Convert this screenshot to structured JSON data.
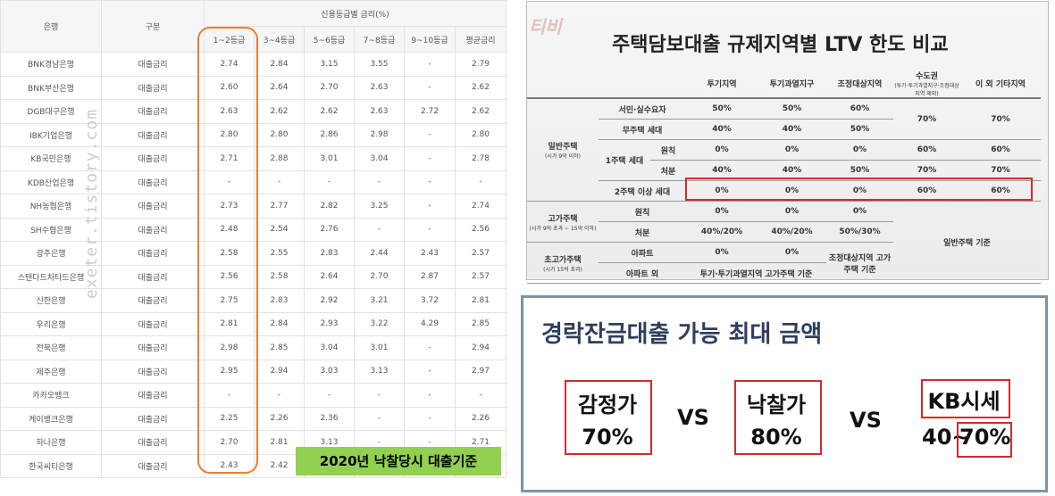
{
  "banks": {
    "header": [
      "은행",
      "구분",
      "신용등급별 금리(%)"
    ],
    "subheader": [
      "1~2등급",
      "3~4등급",
      "5~6등급",
      "7~8등급",
      "9~10등급",
      "평균금리"
    ],
    "rows": [
      [
        "BNK경남은행",
        "대출금리",
        "2.74",
        "2.84",
        "3.15",
        "3.55",
        "-",
        "2.79"
      ],
      [
        "BNK부산은행",
        "대출금리",
        "2.60",
        "2.64",
        "2.70",
        "2.63",
        "-",
        "2.62"
      ],
      [
        "DGB대구은행",
        "대출금리",
        "2.63",
        "2.62",
        "2.62",
        "2.63",
        "2.72",
        "2.62"
      ],
      [
        "IBK기업은행",
        "대출금리",
        "2.80",
        "2.80",
        "2.86",
        "2.98",
        "-",
        "2.80"
      ],
      [
        "KB국민은행",
        "대출금리",
        "2.71",
        "2.88",
        "3.01",
        "3.04",
        "-",
        "2.78"
      ],
      [
        "KDB산업은행",
        "대출금리",
        "-",
        "-",
        "-",
        "-",
        "-",
        "-"
      ],
      [
        "NH농협은행",
        "대출금리",
        "2.73",
        "2.77",
        "2.82",
        "3.25",
        "-",
        "2.74"
      ],
      [
        "SH수협은행",
        "대출금리",
        "2.48",
        "2.54",
        "2.76",
        "-",
        "-",
        "2.56"
      ],
      [
        "광주은행",
        "대출금리",
        "2.58",
        "2.55",
        "2.83",
        "2.44",
        "2.43",
        "2.57"
      ],
      [
        "스탠다드차타드은행",
        "대출금리",
        "2.56",
        "2.58",
        "2.64",
        "2.70",
        "2.87",
        "2.57"
      ],
      [
        "신한은행",
        "대출금리",
        "2.75",
        "2.83",
        "2.92",
        "3.21",
        "3.72",
        "2.81"
      ],
      [
        "우리은행",
        "대출금리",
        "2.81",
        "2.84",
        "2.93",
        "3.22",
        "4.29",
        "2.85"
      ],
      [
        "전북은행",
        "대출금리",
        "2.98",
        "2.85",
        "3.04",
        "3.01",
        "-",
        "2.94"
      ],
      [
        "제주은행",
        "대출금리",
        "2.95",
        "2.94",
        "3.03",
        "3.13",
        "-",
        "2.97"
      ],
      [
        "카카오뱅크",
        "대출금리",
        "-",
        "-",
        "-",
        "-",
        "-",
        "-"
      ],
      [
        "케이뱅크은행",
        "대출금리",
        "2.25",
        "2.26",
        "2.36",
        "-",
        "-",
        "2.26"
      ],
      [
        "하나은행",
        "대출금리",
        "2.70",
        "2.81",
        "3.13",
        "-",
        "-",
        "2.71"
      ],
      [
        "한국씨티은행",
        "대출금리",
        "2.43",
        "2.42"
      ]
    ],
    "watermark": "exeter.tistory.com",
    "overlay": "2020년 낙찰당시 대출기준"
  },
  "ltv": {
    "watermark": "티비",
    "title": "주택담보대출 규제지역별 LTV 한도 비교",
    "header": [
      "투기지역",
      "투기과열지구",
      "조정대상지역",
      "수도권",
      "이 외 기타지역"
    ],
    "header_note": "(투기·투기과열지구·조정대상지역 제외)",
    "groups": [
      {
        "label": "일반주택",
        "note": "(시가 9억 이하)"
      },
      {
        "label": "고가주택",
        "note": "(시가 9억 초과 ~ 15억 이하)"
      },
      {
        "label": "초고가주택",
        "note": "(시가 15억 초과)"
      }
    ],
    "rows": [
      [
        "서민·실수요자",
        "50%",
        "50%",
        "60%",
        "70%",
        "70%"
      ],
      [
        "무주택 세대",
        "40%",
        "40%",
        "50%"
      ],
      [
        "1주택 세대",
        "원칙",
        "0%",
        "0%",
        "0%",
        "60%",
        "60%"
      ],
      [
        "처분",
        "40%",
        "40%",
        "50%",
        "70%",
        "70%"
      ],
      [
        "2주택 이상 세대",
        "0%",
        "0%",
        "0%",
        "60%",
        "60%"
      ],
      [
        "원칙",
        "0%",
        "0%",
        "0%",
        "일반주택 기준"
      ],
      [
        "처분",
        "40%/20%",
        "40%/20%",
        "50%/30%"
      ],
      [
        "아파트",
        "0%",
        "0%",
        "조정대상지역 고가주택 기준"
      ],
      [
        "아파트 외",
        "투기·투기과열지역 고가주택 기준"
      ]
    ]
  },
  "loan": {
    "title": "경락잔금대출 가능 최대 금액",
    "items": [
      {
        "label": "감정가",
        "value": "70%"
      },
      {
        "label": "낙찰가",
        "value": "80%"
      },
      {
        "label": "KB시세",
        "value_prefix": "40~",
        "value": "70%"
      }
    ],
    "vs": "VS"
  }
}
